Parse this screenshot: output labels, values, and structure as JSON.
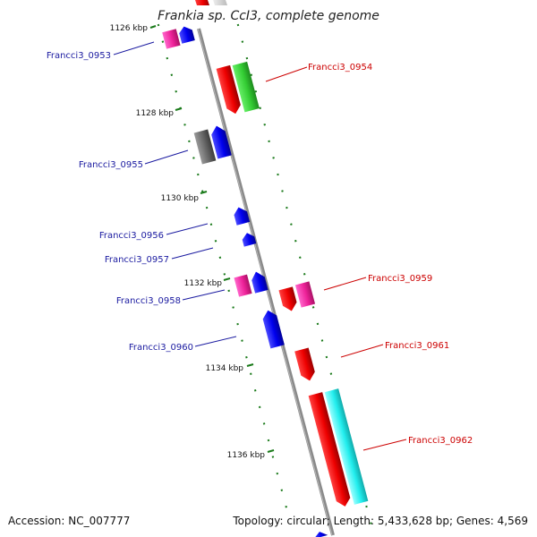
{
  "title": "Frankia sp. CcI3, complete genome",
  "accession": "Accession: NC_007777",
  "summary": "Topology: circular; Length: 5,433,628 bp; Genes: 4,569",
  "colors": {
    "backbone": "#8a8a8a",
    "tick": "#1a7a1a",
    "left_label": "#1a1aa0",
    "right_label": "#cc0000"
  },
  "scale_labels": [
    "1126 kbp",
    "1128 kbp",
    "1130 kbp",
    "1132 kbp",
    "1134 kbp",
    "1136 kbp"
  ],
  "genes": [
    {
      "name": "Francci3_0953",
      "side": "left"
    },
    {
      "name": "Francci3_0954",
      "side": "right"
    },
    {
      "name": "Francci3_0955",
      "side": "left"
    },
    {
      "name": "Francci3_0956",
      "side": "left"
    },
    {
      "name": "Francci3_0957",
      "side": "left"
    },
    {
      "name": "Francci3_0958",
      "side": "left"
    },
    {
      "name": "Francci3_0959",
      "side": "right"
    },
    {
      "name": "Francci3_0960",
      "side": "left"
    },
    {
      "name": "Francci3_0961",
      "side": "right"
    },
    {
      "name": "Francci3_0962",
      "side": "right"
    }
  ]
}
